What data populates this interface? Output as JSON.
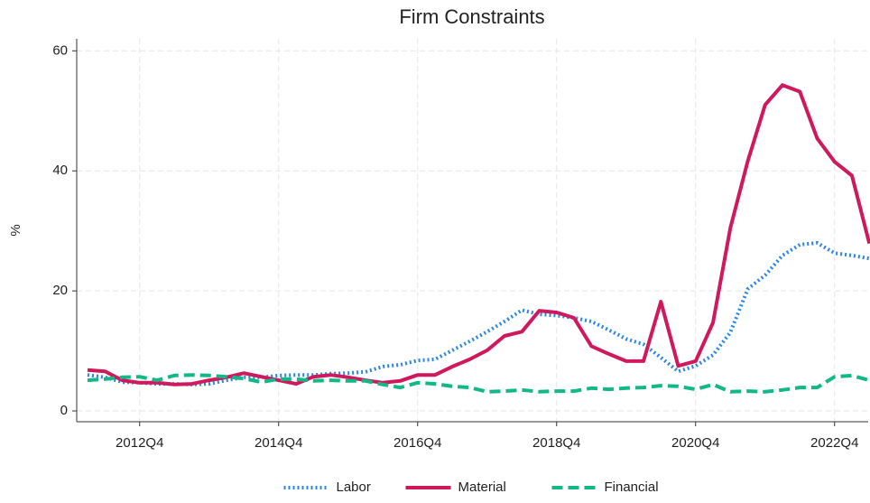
{
  "chart_data": {
    "type": "line",
    "title": "Firm Constraints",
    "y_label": "%",
    "categories": [
      null,
      null,
      null,
      "2012Q4",
      null,
      null,
      null,
      null,
      null,
      null,
      null,
      "2014Q4",
      null,
      null,
      null,
      null,
      null,
      null,
      null,
      "2016Q4",
      null,
      null,
      null,
      null,
      null,
      null,
      null,
      "2018Q4",
      null,
      null,
      null,
      null,
      null,
      null,
      null,
      "2020Q4",
      null,
      null,
      null,
      null,
      null,
      null,
      null,
      "2022Q4",
      null,
      null
    ],
    "series": [
      {
        "name": "Labor",
        "color": "#2b86e6",
        "style": "dotted",
        "values": [
          6.0,
          5.6,
          4.8,
          4.7,
          4.5,
          4.5,
          4.4,
          4.5,
          5.1,
          5.6,
          5.6,
          5.9,
          6.0,
          6.0,
          6.2,
          6.3,
          6.5,
          7.4,
          7.7,
          8.4,
          8.6,
          10.1,
          11.6,
          13.2,
          14.9,
          16.8,
          16.1,
          15.9,
          15.5,
          14.9,
          13.5,
          12.0,
          11.1,
          8.9,
          6.6,
          7.5,
          9.3,
          13.1,
          20.3,
          22.6,
          25.9,
          27.7,
          28.0,
          26.3,
          25.9,
          25.4
        ]
      },
      {
        "name": "Material",
        "color": "#d0195c",
        "style": "solid",
        "values": [
          6.8,
          6.6,
          5.1,
          4.7,
          4.7,
          4.4,
          4.5,
          5.1,
          5.6,
          6.3,
          5.7,
          5.1,
          4.5,
          5.7,
          6.0,
          5.6,
          5.1,
          4.7,
          5.0,
          6.0,
          6.0,
          7.4,
          8.6,
          10.1,
          12.5,
          13.2,
          16.7,
          16.4,
          15.5,
          10.8,
          9.5,
          8.3,
          8.3,
          18.2,
          7.5,
          8.3,
          14.7,
          30.5,
          41.6,
          51.0,
          54.3,
          53.2,
          45.4,
          41.5,
          39.2,
          27.9
        ]
      },
      {
        "name": "Financial",
        "color": "#12b886",
        "style": "dashed",
        "values": [
          5.1,
          5.3,
          5.6,
          5.7,
          5.1,
          5.9,
          6.0,
          5.9,
          5.7,
          5.4,
          4.8,
          5.3,
          5.3,
          5.0,
          5.1,
          5.0,
          5.0,
          4.4,
          3.9,
          4.7,
          4.5,
          4.1,
          3.9,
          3.2,
          3.3,
          3.5,
          3.2,
          3.3,
          3.3,
          3.8,
          3.6,
          3.8,
          3.9,
          4.2,
          4.1,
          3.6,
          4.4,
          3.2,
          3.3,
          3.2,
          3.5,
          3.9,
          3.9,
          5.7,
          5.9,
          5.1
        ]
      }
    ],
    "ylim": [
      -1.8,
      62
    ],
    "yticks": [
      0,
      20,
      40,
      60
    ],
    "grid": true,
    "legend": "bottom"
  }
}
